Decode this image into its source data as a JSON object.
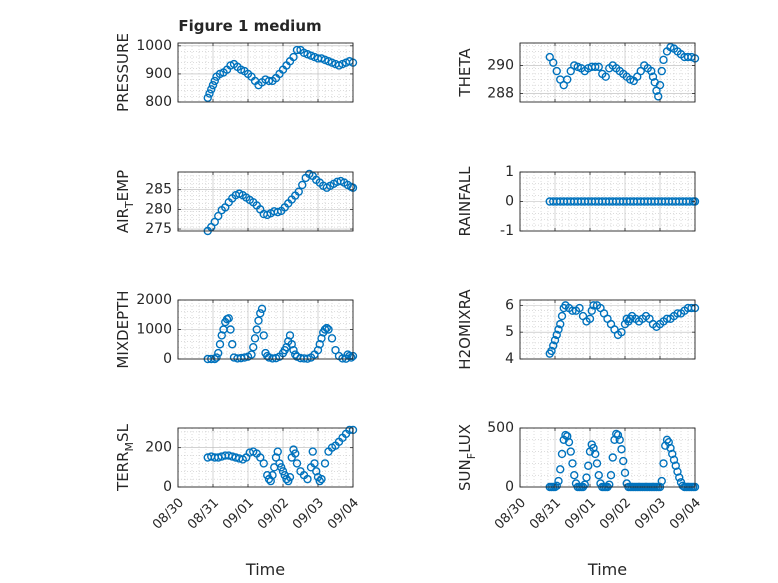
{
  "figure": {
    "title": "Figure 1 medium",
    "colors": {
      "marker": "#0072BD",
      "axis": "#262626",
      "grid": "#b8b8b8",
      "background": "#ffffff"
    }
  },
  "chart_data": [
    {
      "type": "scatter",
      "title": "Figure 1 medium",
      "ylabel": "PRESSURE",
      "ylabel_sub": "",
      "xlabel": "",
      "ylim": [
        800,
        1010
      ],
      "yticks": [
        800,
        900,
        1000
      ],
      "xlim": [
        0,
        5
      ],
      "xticks": [
        0,
        1,
        2,
        3,
        4,
        5
      ],
      "xticklabels": [],
      "grid": true,
      "x": [
        0.85,
        0.9,
        0.95,
        1.0,
        1.05,
        1.1,
        1.2,
        1.3,
        1.4,
        1.5,
        1.6,
        1.7,
        1.8,
        1.9,
        2.0,
        2.1,
        2.2,
        2.3,
        2.4,
        2.5,
        2.6,
        2.7,
        2.8,
        2.9,
        3.0,
        3.1,
        3.2,
        3.3,
        3.4,
        3.5,
        3.6,
        3.7,
        3.8,
        3.9,
        4.0,
        4.1,
        4.2,
        4.3,
        4.4,
        4.5,
        4.6,
        4.7,
        4.8,
        4.9,
        5.0
      ],
      "y": [
        815,
        830,
        845,
        860,
        875,
        890,
        900,
        905,
        915,
        930,
        935,
        925,
        915,
        910,
        900,
        890,
        875,
        860,
        870,
        880,
        875,
        875,
        885,
        900,
        915,
        930,
        945,
        960,
        985,
        985,
        975,
        970,
        965,
        960,
        955,
        955,
        950,
        945,
        940,
        935,
        930,
        935,
        940,
        945,
        940
      ]
    },
    {
      "type": "scatter",
      "ylabel": "THETA",
      "ylabel_sub": "",
      "ylim": [
        287.4,
        291.6
      ],
      "yticks": [
        288,
        290
      ],
      "xlim": [
        0,
        5
      ],
      "xticks": [
        0,
        1,
        2,
        3,
        4,
        5
      ],
      "xticklabels": [],
      "grid": true,
      "x": [
        0.85,
        0.95,
        1.05,
        1.15,
        1.25,
        1.35,
        1.45,
        1.55,
        1.65,
        1.75,
        1.85,
        1.95,
        2.05,
        2.15,
        2.25,
        2.35,
        2.45,
        2.55,
        2.65,
        2.75,
        2.85,
        2.95,
        3.05,
        3.15,
        3.25,
        3.35,
        3.45,
        3.55,
        3.65,
        3.75,
        3.8,
        3.85,
        3.9,
        3.95,
        4.0,
        4.05,
        4.1,
        4.2,
        4.3,
        4.4,
        4.5,
        4.6,
        4.7,
        4.8,
        4.9,
        5.0
      ],
      "y": [
        290.6,
        290.2,
        289.6,
        289.0,
        288.6,
        289.0,
        289.6,
        290.0,
        289.9,
        289.8,
        289.6,
        289.8,
        289.9,
        289.9,
        289.9,
        289.4,
        289.2,
        289.8,
        290.0,
        289.8,
        289.6,
        289.4,
        289.2,
        289.0,
        288.9,
        289.2,
        289.6,
        290.0,
        289.8,
        289.6,
        289.2,
        288.8,
        288.2,
        287.8,
        288.6,
        289.6,
        290.4,
        291.0,
        291.3,
        291.2,
        291.0,
        290.8,
        290.6,
        290.6,
        290.6,
        290.5
      ]
    },
    {
      "type": "scatter",
      "ylabel": "AIR",
      "ylabel_sub": "T",
      "ylabel_tail": "EMP",
      "ylim": [
        274.5,
        289.5
      ],
      "yticks": [
        275,
        280,
        285
      ],
      "xlim": [
        0,
        5
      ],
      "xticks": [
        0,
        1,
        2,
        3,
        4,
        5
      ],
      "xticklabels": [],
      "grid": true,
      "x": [
        0.85,
        0.95,
        1.05,
        1.15,
        1.25,
        1.35,
        1.45,
        1.55,
        1.65,
        1.75,
        1.85,
        1.95,
        2.05,
        2.15,
        2.25,
        2.35,
        2.45,
        2.55,
        2.65,
        2.75,
        2.85,
        2.95,
        3.05,
        3.15,
        3.25,
        3.35,
        3.45,
        3.55,
        3.65,
        3.75,
        3.85,
        3.95,
        4.05,
        4.15,
        4.25,
        4.35,
        4.45,
        4.55,
        4.65,
        4.75,
        4.85,
        4.95,
        5.0
      ],
      "y": [
        274.5,
        275.5,
        276.8,
        278.3,
        279.8,
        280.5,
        281.8,
        282.8,
        283.6,
        284.0,
        283.6,
        283.0,
        282.4,
        281.8,
        281.0,
        280.0,
        278.8,
        278.6,
        279.0,
        279.5,
        279.3,
        279.6,
        280.5,
        281.5,
        282.5,
        283.5,
        284.5,
        286.2,
        288.0,
        289.0,
        288.5,
        287.5,
        286.8,
        286.0,
        285.5,
        286.0,
        286.5,
        287.0,
        287.2,
        286.8,
        286.2,
        285.7,
        285.5
      ]
    },
    {
      "type": "scatter",
      "ylabel": "RAINFALL",
      "ylabel_sub": "",
      "ylim": [
        -1,
        1
      ],
      "yticks": [
        -1,
        0,
        1
      ],
      "xlim": [
        0,
        5
      ],
      "xticks": [
        0,
        1,
        2,
        3,
        4,
        5
      ],
      "xticklabels": [],
      "grid": true,
      "x": [
        0.85,
        0.95,
        1.05,
        1.15,
        1.25,
        1.35,
        1.45,
        1.55,
        1.65,
        1.75,
        1.85,
        1.95,
        2.05,
        2.15,
        2.25,
        2.35,
        2.45,
        2.55,
        2.65,
        2.75,
        2.85,
        2.95,
        3.05,
        3.15,
        3.25,
        3.35,
        3.45,
        3.55,
        3.65,
        3.75,
        3.85,
        3.95,
        4.05,
        4.15,
        4.25,
        4.35,
        4.45,
        4.55,
        4.65,
        4.75,
        4.85,
        4.95,
        5.0
      ],
      "y": [
        0,
        0,
        0,
        0,
        0,
        0,
        0,
        0,
        0,
        0,
        0,
        0,
        0,
        0,
        0,
        0,
        0,
        0,
        0,
        0,
        0,
        0,
        0,
        0,
        0,
        0,
        0,
        0,
        0,
        0,
        0,
        0,
        0,
        0,
        0,
        0,
        0,
        0,
        0,
        0,
        0,
        0,
        0
      ]
    },
    {
      "type": "scatter",
      "ylabel": "MIXDEPTH",
      "ylabel_sub": "",
      "ylim": [
        0,
        2000
      ],
      "yticks": [
        0,
        1000,
        2000
      ],
      "xlim": [
        0,
        5
      ],
      "xticks": [
        0,
        1,
        2,
        3,
        4,
        5
      ],
      "xticklabels": [],
      "grid": true,
      "x": [
        0.85,
        0.95,
        1.05,
        1.1,
        1.15,
        1.2,
        1.25,
        1.3,
        1.35,
        1.4,
        1.45,
        1.5,
        1.55,
        1.6,
        1.7,
        1.8,
        1.9,
        2.0,
        2.1,
        2.15,
        2.2,
        2.25,
        2.3,
        2.35,
        2.4,
        2.45,
        2.5,
        2.55,
        2.6,
        2.7,
        2.8,
        2.9,
        3.0,
        3.05,
        3.1,
        3.15,
        3.2,
        3.25,
        3.3,
        3.35,
        3.4,
        3.5,
        3.6,
        3.7,
        3.8,
        3.9,
        4.0,
        4.05,
        4.1,
        4.15,
        4.2,
        4.25,
        4.3,
        4.4,
        4.5,
        4.6,
        4.7,
        4.8,
        4.85,
        4.9,
        4.95,
        5.0
      ],
      "y": [
        0,
        0,
        0,
        50,
        200,
        500,
        800,
        1000,
        1250,
        1350,
        1380,
        1000,
        500,
        50,
        20,
        30,
        50,
        80,
        150,
        400,
        700,
        1000,
        1300,
        1550,
        1700,
        800,
        200,
        100,
        50,
        20,
        30,
        80,
        200,
        300,
        400,
        600,
        800,
        500,
        300,
        150,
        80,
        30,
        20,
        10,
        50,
        150,
        300,
        500,
        700,
        900,
        1000,
        1050,
        1000,
        700,
        300,
        100,
        20,
        10,
        150,
        100,
        50,
        100
      ]
    },
    {
      "type": "scatter",
      "ylabel": "H2OMIXRA",
      "ylabel_sub": "",
      "ylim": [
        4,
        6.2
      ],
      "yticks": [
        4,
        5,
        6
      ],
      "xlim": [
        0,
        5
      ],
      "xticks": [
        0,
        1,
        2,
        3,
        4,
        5
      ],
      "xticklabels": [],
      "grid": true,
      "x": [
        0.85,
        0.9,
        0.95,
        1.0,
        1.05,
        1.1,
        1.15,
        1.2,
        1.25,
        1.3,
        1.4,
        1.5,
        1.6,
        1.7,
        1.8,
        1.9,
        2.0,
        2.05,
        2.1,
        2.2,
        2.3,
        2.4,
        2.5,
        2.6,
        2.7,
        2.8,
        2.9,
        3.0,
        3.05,
        3.1,
        3.15,
        3.2,
        3.3,
        3.4,
        3.5,
        3.6,
        3.7,
        3.8,
        3.9,
        4.0,
        4.1,
        4.2,
        4.3,
        4.4,
        4.5,
        4.6,
        4.7,
        4.8,
        4.9,
        5.0
      ],
      "y": [
        4.2,
        4.3,
        4.5,
        4.7,
        4.9,
        5.1,
        5.3,
        5.6,
        5.9,
        6.0,
        5.9,
        5.8,
        5.8,
        5.9,
        5.6,
        5.4,
        5.5,
        5.8,
        6.0,
        6.0,
        5.9,
        5.7,
        5.5,
        5.3,
        5.1,
        4.9,
        5.0,
        5.3,
        5.5,
        5.4,
        5.5,
        5.6,
        5.5,
        5.4,
        5.5,
        5.6,
        5.5,
        5.3,
        5.2,
        5.3,
        5.4,
        5.5,
        5.5,
        5.6,
        5.7,
        5.7,
        5.8,
        5.9,
        5.9,
        5.9
      ]
    },
    {
      "type": "scatter",
      "ylabel": "TERR",
      "ylabel_sub": "M",
      "ylabel_tail": "SL",
      "ylim": [
        0,
        300
      ],
      "yticks": [
        0,
        200
      ],
      "xlim": [
        0,
        5
      ],
      "xticks": [
        0,
        1,
        2,
        3,
        4,
        5
      ],
      "xticklabels": [
        "08/30",
        "08/31",
        "09/01",
        "09/02",
        "09/03",
        "09/04"
      ],
      "xlabel": "Time",
      "grid": true,
      "x": [
        0.85,
        0.95,
        1.05,
        1.15,
        1.25,
        1.35,
        1.45,
        1.55,
        1.65,
        1.75,
        1.85,
        1.95,
        2.05,
        2.15,
        2.25,
        2.35,
        2.45,
        2.55,
        2.6,
        2.65,
        2.7,
        2.75,
        2.8,
        2.85,
        2.9,
        2.95,
        3.0,
        3.05,
        3.1,
        3.15,
        3.2,
        3.25,
        3.3,
        3.35,
        3.4,
        3.5,
        3.6,
        3.7,
        3.8,
        3.85,
        3.9,
        3.95,
        4.0,
        4.05,
        4.1,
        4.2,
        4.3,
        4.4,
        4.5,
        4.6,
        4.7,
        4.8,
        4.9,
        5.0
      ],
      "y": [
        150,
        155,
        150,
        150,
        155,
        160,
        160,
        155,
        150,
        145,
        140,
        150,
        175,
        180,
        170,
        150,
        120,
        60,
        40,
        30,
        60,
        100,
        150,
        180,
        120,
        100,
        80,
        60,
        40,
        30,
        50,
        150,
        190,
        170,
        120,
        80,
        60,
        40,
        100,
        180,
        120,
        80,
        50,
        30,
        40,
        120,
        180,
        200,
        210,
        230,
        250,
        270,
        290,
        290
      ]
    },
    {
      "type": "scatter",
      "ylabel": "SUN",
      "ylabel_sub": "F",
      "ylabel_tail": "LUX",
      "ylim": [
        0,
        500
      ],
      "yticks": [
        0,
        500
      ],
      "xlim": [
        0,
        5
      ],
      "xticks": [
        0,
        1,
        2,
        3,
        4,
        5
      ],
      "xticklabels": [
        "08/30",
        "08/31",
        "09/01",
        "09/02",
        "09/03",
        "09/04"
      ],
      "xlabel": "Time",
      "grid": true,
      "x": [
        0.85,
        0.9,
        0.95,
        1.0,
        1.05,
        1.1,
        1.15,
        1.2,
        1.25,
        1.3,
        1.35,
        1.4,
        1.45,
        1.5,
        1.55,
        1.6,
        1.65,
        1.7,
        1.75,
        1.8,
        1.85,
        1.9,
        1.95,
        2.0,
        2.05,
        2.1,
        2.15,
        2.2,
        2.25,
        2.3,
        2.35,
        2.4,
        2.45,
        2.5,
        2.55,
        2.6,
        2.65,
        2.7,
        2.75,
        2.8,
        2.85,
        2.9,
        2.95,
        3.0,
        3.05,
        3.1,
        3.15,
        3.2,
        3.25,
        3.3,
        3.35,
        3.4,
        3.45,
        3.5,
        3.55,
        3.6,
        3.65,
        3.7,
        3.75,
        3.8,
        3.85,
        3.9,
        3.95,
        4.0,
        4.05,
        4.1,
        4.15,
        4.2,
        4.25,
        4.3,
        4.35,
        4.4,
        4.45,
        4.5,
        4.55,
        4.6,
        4.65,
        4.7,
        4.75,
        4.8,
        4.85,
        4.9,
        4.95,
        5.0
      ],
      "y": [
        0,
        0,
        0,
        0,
        10,
        50,
        150,
        280,
        400,
        440,
        430,
        380,
        300,
        200,
        100,
        30,
        0,
        0,
        0,
        0,
        20,
        80,
        180,
        300,
        360,
        330,
        280,
        200,
        100,
        30,
        0,
        0,
        0,
        0,
        20,
        100,
        250,
        400,
        450,
        440,
        400,
        320,
        220,
        120,
        30,
        0,
        0,
        0,
        0,
        0,
        0,
        0,
        0,
        0,
        0,
        0,
        0,
        0,
        0,
        0,
        0,
        0,
        0,
        0,
        50,
        200,
        350,
        400,
        380,
        330,
        280,
        230,
        180,
        130,
        80,
        40,
        10,
        0,
        0,
        0,
        0,
        0,
        0,
        0
      ]
    }
  ]
}
